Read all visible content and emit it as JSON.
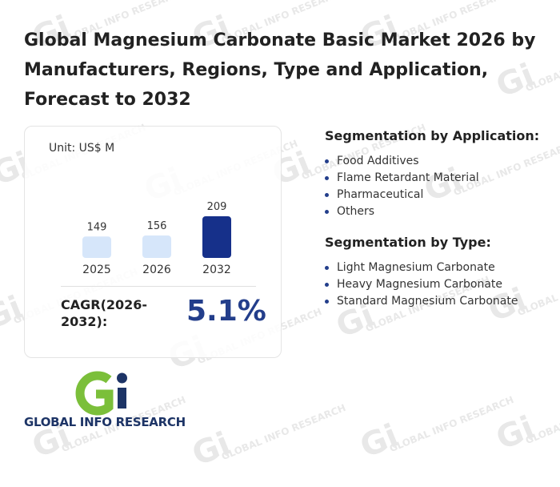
{
  "title": "Global Magnesium Carbonate Basic Market 2026 by Manufacturers, Regions, Type and Application, Forecast to 2032",
  "card": {
    "unit": "Unit: US$ M",
    "cagr_label": "CAGR(2026-2032):",
    "cagr_value": "5.1%"
  },
  "chart_data": {
    "type": "bar",
    "categories": [
      "2025",
      "2026",
      "2032"
    ],
    "values": [
      149,
      156,
      209
    ],
    "title": "",
    "xlabel": "",
    "ylabel": "",
    "unit": "US$ M",
    "bar_colors": [
      "#d6e6fa",
      "#d6e6fa",
      "#16308a"
    ],
    "grid": false
  },
  "segments": {
    "application": {
      "heading": "Segmentation by Application:",
      "items": [
        "Food Additives",
        "Flame Retardant Material",
        "Pharmaceutical",
        "Others"
      ]
    },
    "type": {
      "heading": "Segmentation by Type:",
      "items": [
        "Light Magnesium Carbonate",
        "Heavy Magnesium Carbonate",
        "Standard Magnesium Carbonate"
      ]
    }
  },
  "logo": {
    "text": "GLOBAL INFO RESEARCH",
    "colors": {
      "green": "#7bbf3a",
      "navy": "#1d3466"
    }
  },
  "watermark": {
    "text": "GLOBAL INFO RESEARCH"
  }
}
